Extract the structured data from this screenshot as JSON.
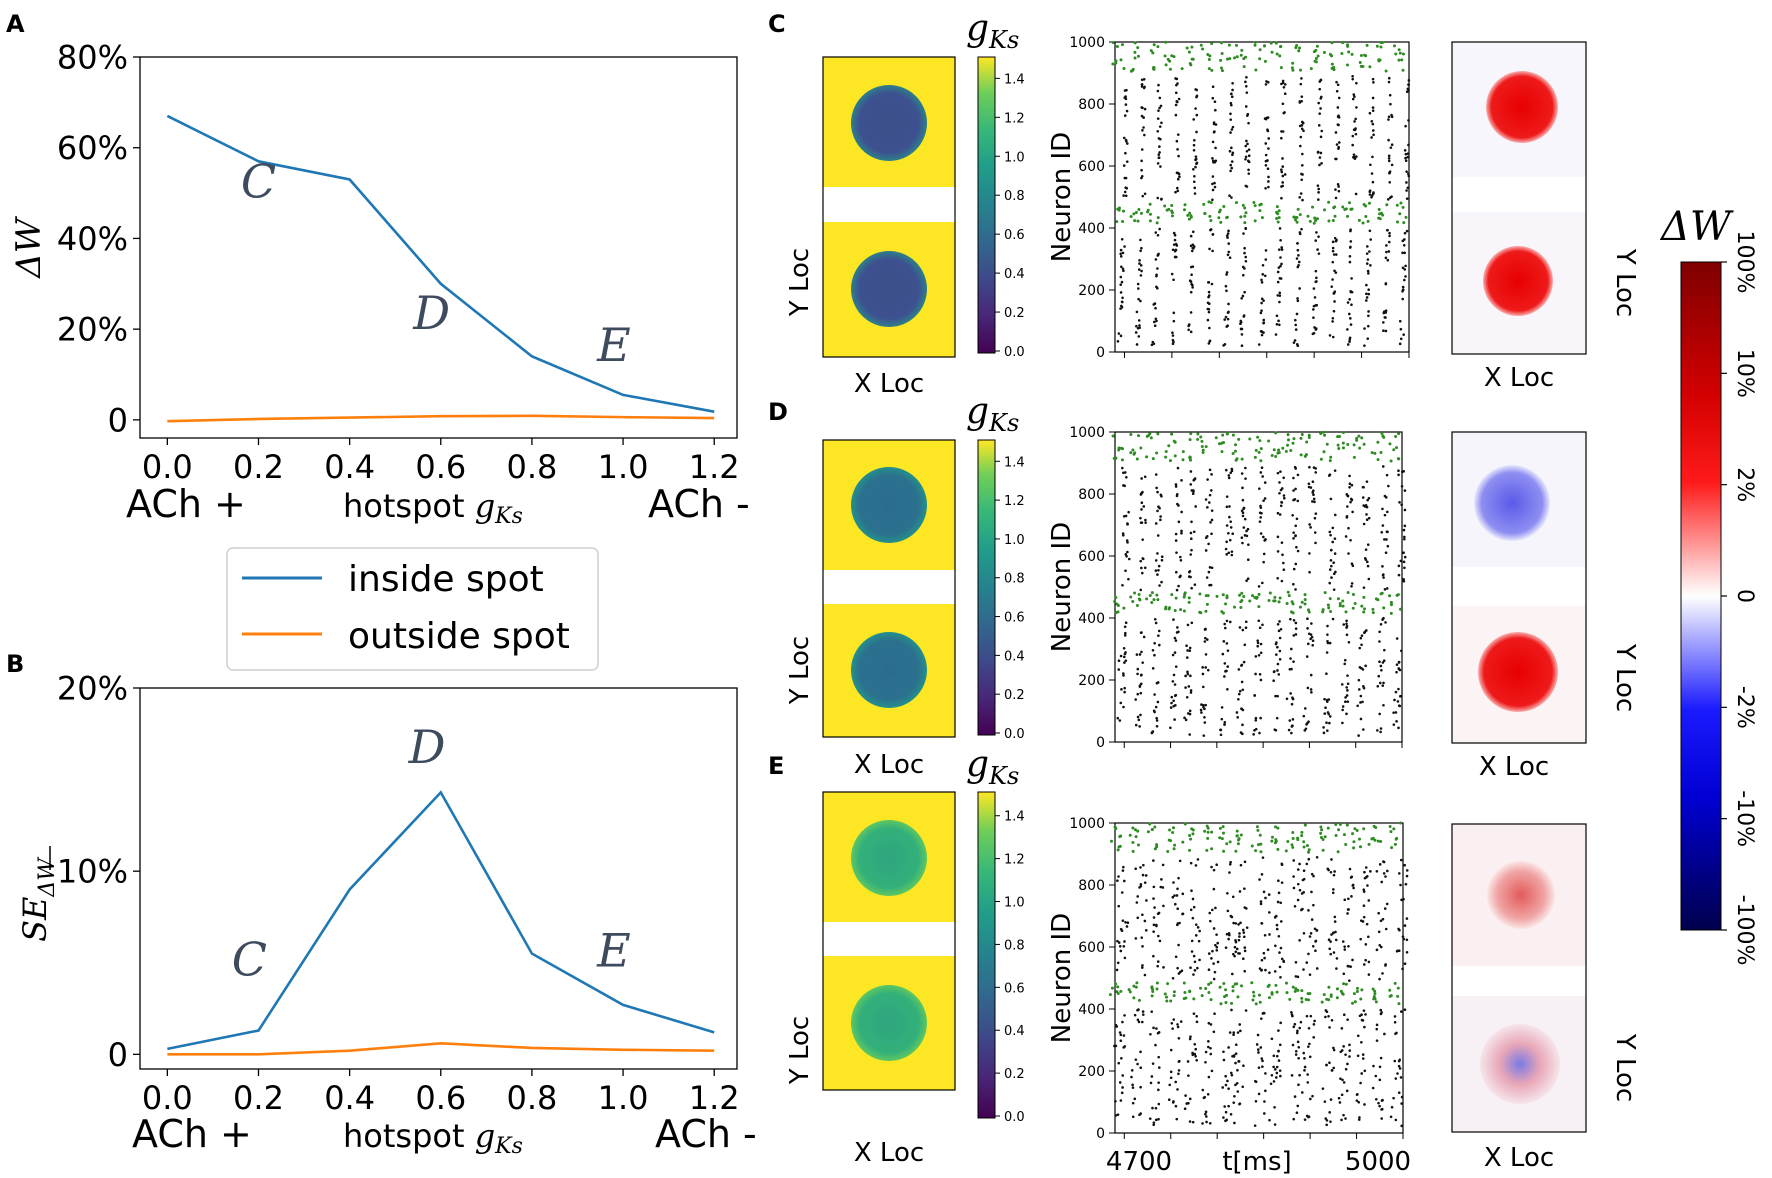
{
  "panel_letters": [
    "A",
    "B",
    "C",
    "D",
    "E"
  ],
  "legend": {
    "inside": "inside spot",
    "outside": "outside spot"
  },
  "colors": {
    "inside": "#1f77b4",
    "outside": "#ff7f0e",
    "annot": "#3e4a5e",
    "green_spikes": "#2e8b22",
    "black_spikes": "#111111",
    "yellow": "#fde725",
    "blue_cmap": "#1e1a8c",
    "red_cmap": "#e60000"
  },
  "line_axis_common": {
    "xticks": [
      "0.0",
      "0.2",
      "0.4",
      "0.6",
      "0.8",
      "1.0",
      "1.2"
    ],
    "x_left": "ACh +",
    "x_mid": "hotspot ",
    "x_mid_sym": "g",
    "x_mid_sub": "Ks",
    "x_right": "ACh -"
  },
  "chart_data": [
    {
      "id": "A",
      "type": "line",
      "title": "",
      "ylabel": "ΔW",
      "xlabel": "hotspot gKs",
      "x": [
        0.0,
        0.2,
        0.4,
        0.6,
        0.8,
        1.0,
        1.2
      ],
      "xlim": [
        -0.06,
        1.25
      ],
      "ylim": [
        -4,
        80
      ],
      "yticks": [
        0,
        20,
        40,
        60,
        80
      ],
      "ytick_labels": [
        "0",
        "20%",
        "40%",
        "60%",
        "80%"
      ],
      "series": [
        {
          "name": "inside spot",
          "values": [
            67,
            57,
            53,
            30,
            14,
            5.5,
            1.8
          ]
        },
        {
          "name": "outside spot",
          "values": [
            -0.3,
            0.2,
            0.5,
            0.8,
            0.9,
            0.6,
            0.4
          ]
        }
      ],
      "annotations": [
        {
          "text": "C",
          "x": 0.2,
          "y": 49
        },
        {
          "text": "D",
          "x": 0.58,
          "y": 20
        },
        {
          "text": "E",
          "x": 0.98,
          "y": 13
        }
      ]
    },
    {
      "id": "B",
      "type": "line",
      "title": "",
      "ylabel": "SEΔW",
      "xlabel": "hotspot gKs",
      "x": [
        0.0,
        0.2,
        0.4,
        0.6,
        0.8,
        1.0,
        1.2
      ],
      "xlim": [
        -0.06,
        1.25
      ],
      "ylim": [
        -0.8,
        20
      ],
      "yticks": [
        0,
        10,
        20
      ],
      "ytick_labels": [
        "0",
        "10%",
        "20%"
      ],
      "series": [
        {
          "name": "inside spot",
          "values": [
            0.3,
            1.3,
            9.0,
            14.3,
            5.5,
            2.7,
            1.2
          ]
        },
        {
          "name": "outside spot",
          "values": [
            0.0,
            0.0,
            0.2,
            0.6,
            0.35,
            0.25,
            0.2
          ]
        }
      ],
      "annotations": [
        {
          "text": "C",
          "x": 0.18,
          "y": 4.3
        },
        {
          "text": "D",
          "x": 0.57,
          "y": 15.9
        },
        {
          "text": "E",
          "x": 0.98,
          "y": 4.8
        }
      ]
    },
    {
      "id": "gks-maps",
      "type": "heatmap",
      "xlabel": "X Loc",
      "ylabel": "Y Loc",
      "colorbar_label": "gKs",
      "colorbar_ticks": [
        "0.0",
        "0.2",
        "0.4",
        "0.6",
        "0.8",
        "1.0",
        "1.2",
        "1.4"
      ],
      "rows": [
        {
          "panel": "C",
          "hotspot_gKs": 0.2
        },
        {
          "panel": "D",
          "hotspot_gKs": 0.6
        },
        {
          "panel": "E",
          "hotspot_gKs": 1.0
        }
      ]
    },
    {
      "id": "rasters",
      "type": "scatter",
      "ylabel": "Neuron ID",
      "xlabel": "t[ms]",
      "xlim": [
        4690,
        5000
      ],
      "xtick_labels": [
        "4700",
        "5000"
      ],
      "ylim": [
        0,
        1000
      ],
      "ytick_labels": [
        "0",
        "200",
        "400",
        "600",
        "800",
        "1000"
      ],
      "note": "green points: hotspot neurons (IDs ~420-480, ~900-1000); black points: other neurons"
    },
    {
      "id": "dw-maps",
      "type": "heatmap",
      "xlabel": "X Loc",
      "ylabel": "Y Loc",
      "colorbar_label": "ΔW",
      "colorbar_ticks": [
        "100%",
        "10%",
        "2%",
        "0",
        "-2%",
        "-10%",
        "-100%"
      ]
    }
  ]
}
